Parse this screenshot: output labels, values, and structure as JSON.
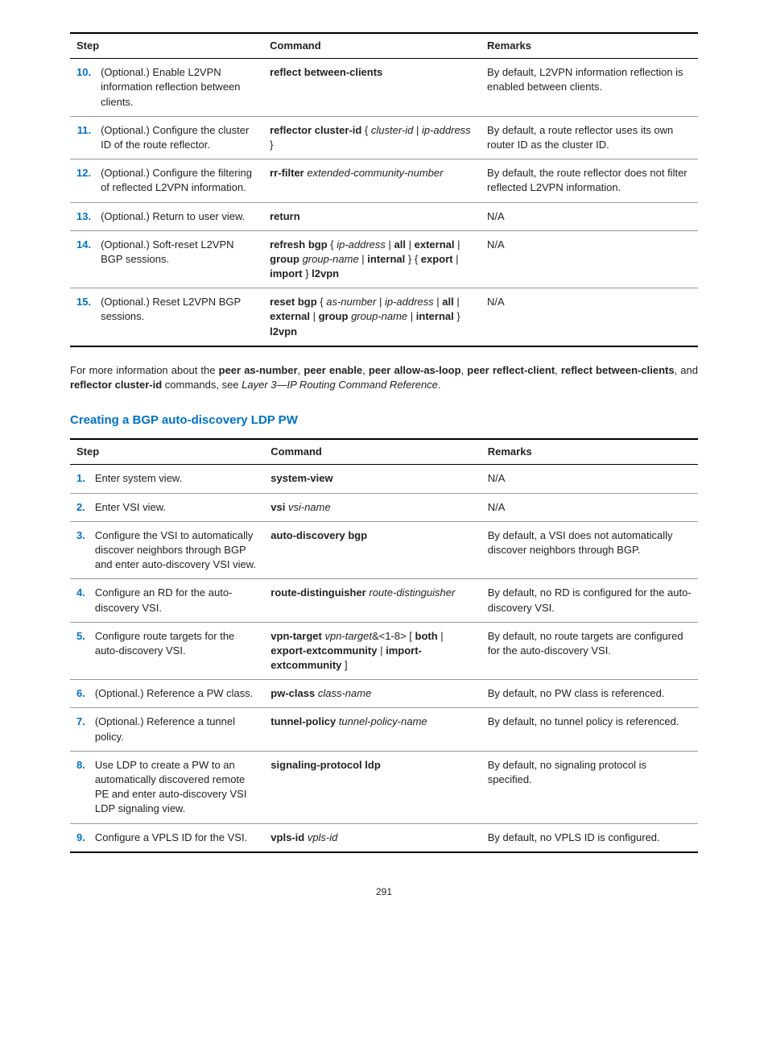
{
  "table1": {
    "headers": {
      "step": "Step",
      "command": "Command",
      "remarks": "Remarks"
    },
    "rows": [
      {
        "num": "10.",
        "step": "(Optional.) Enable L2VPN information reflection between clients.",
        "cmd_html": "<span class='cmd-bold'>reflect between-clients</span>",
        "remarks": "By default, L2VPN information reflection is enabled between clients."
      },
      {
        "num": "11.",
        "step": "(Optional.) Configure the cluster ID of the route reflector.",
        "cmd_html": "<span class='cmd-bold'>reflector cluster-id</span> { <span class='cmd-ital'>cluster-id</span> | <span class='cmd-ital'>ip-address</span> }",
        "remarks": "By default, a route reflector uses its own router ID as the cluster ID."
      },
      {
        "num": "12.",
        "step": "(Optional.) Configure the filtering of reflected L2VPN information.",
        "cmd_html": "<span class='cmd-bold'>rr-filter</span> <span class='cmd-ital'>extended-community-number</span>",
        "remarks": "By default, the route reflector does not filter reflected L2VPN information."
      },
      {
        "num": "13.",
        "step": "(Optional.) Return to user view.",
        "cmd_html": "<span class='cmd-bold'>return</span>",
        "remarks": "N/A"
      },
      {
        "num": "14.",
        "step": "(Optional.) Soft-reset L2VPN BGP sessions.",
        "cmd_html": "<span class='cmd-bold'>refresh bgp</span> { <span class='cmd-ital'>ip-address</span> | <span class='cmd-bold'>all</span> | <span class='cmd-bold'>external</span> | <span class='cmd-bold'>group</span> <span class='cmd-ital'>group-name</span> | <span class='cmd-bold'>internal</span> } { <span class='cmd-bold'>export</span> | <span class='cmd-bold'>import</span> } <span class='cmd-bold'>l2vpn</span>",
        "remarks": "N/A"
      },
      {
        "num": "15.",
        "step": "(Optional.) Reset L2VPN BGP sessions.",
        "cmd_html": "<span class='cmd-bold'>reset bgp</span> { <span class='cmd-ital'>as-number</span> | <span class='cmd-ital'>ip-address</span> | <span class='cmd-bold'>all</span> | <span class='cmd-bold'>external</span> | <span class='cmd-bold'>group</span> <span class='cmd-ital'>group-name</span> | <span class='cmd-bold'>internal</span> } <span class='cmd-bold'>l2vpn</span>",
        "remarks": "N/A"
      }
    ]
  },
  "para_html": "For more information about the <span class='cmd-bold'>peer as-number</span>, <span class='cmd-bold'>peer enable</span>, <span class='cmd-bold'>peer allow-as-loop</span>, <span class='cmd-bold'>peer reflect-client</span>, <span class='cmd-bold'>reflect between-clients</span>, and <span class='cmd-bold'>reflector cluster-id</span> commands, see <span class='cmd-ital'>Layer 3—IP Routing Command Reference</span>.",
  "section_heading": "Creating a BGP auto-discovery LDP PW",
  "table2": {
    "headers": {
      "step": "Step",
      "command": "Command",
      "remarks": "Remarks"
    },
    "rows": [
      {
        "num": "1.",
        "step": "Enter system view.",
        "cmd_html": "<span class='cmd-bold'>system-view</span>",
        "remarks": "N/A"
      },
      {
        "num": "2.",
        "step": "Enter VSI view.",
        "cmd_html": "<span class='cmd-bold'>vsi</span> <span class='cmd-ital'>vsi-name</span>",
        "remarks": "N/A"
      },
      {
        "num": "3.",
        "step": "Configure the VSI to automatically discover neighbors through BGP and enter auto-discovery VSI view.",
        "cmd_html": "<span class='cmd-bold'>auto-discovery bgp</span>",
        "remarks": "By default, a VSI does not automatically discover neighbors through BGP."
      },
      {
        "num": "4.",
        "step": "Configure an RD for the auto-discovery VSI.",
        "cmd_html": "<span class='cmd-bold'>route-distinguisher</span> <span class='cmd-ital'>route-distinguisher</span>",
        "remarks": "By default, no RD is configured for the auto-discovery VSI."
      },
      {
        "num": "5.",
        "step": "Configure route targets for the auto-discovery VSI.",
        "cmd_html": "<span class='cmd-bold'>vpn-target</span> <span class='cmd-ital'>vpn-target</span>&amp;&lt;1-8&gt; [ <span class='cmd-bold'>both</span> | <span class='cmd-bold'>export-extcommunity</span> | <span class='cmd-bold'>import-extcommunity</span> ]",
        "remarks": "By default, no route targets are configured for the auto-discovery VSI."
      },
      {
        "num": "6.",
        "step": "(Optional.) Reference a PW class.",
        "cmd_html": "<span class='cmd-bold'>pw-class</span> <span class='cmd-ital'>class-name</span>",
        "remarks": "By default, no PW class is referenced."
      },
      {
        "num": "7.",
        "step": "(Optional.) Reference a tunnel policy.",
        "cmd_html": "<span class='cmd-bold'>tunnel-policy</span> <span class='cmd-ital'>tunnel-policy-name</span>",
        "remarks": "By default, no tunnel policy is referenced."
      },
      {
        "num": "8.",
        "step": "Use LDP to create a PW to an automatically discovered remote PE and enter auto-discovery VSI LDP signaling view.",
        "cmd_html": "<span class='cmd-bold'>signaling-protocol ldp</span>",
        "remarks": "By default, no signaling protocol is specified."
      },
      {
        "num": "9.",
        "step": "Configure a VPLS ID for the VSI.",
        "cmd_html": "<span class='cmd-bold'>vpls-id</span> <span class='cmd-ital'>vpls-id</span>",
        "remarks": "By default, no VPLS ID is configured."
      }
    ]
  },
  "pagenum": "291",
  "colors": {
    "heading": "#0072c6",
    "stepnum": "#0072c6",
    "border_heavy": "#000000",
    "border_light": "#999999",
    "text": "#222222"
  }
}
